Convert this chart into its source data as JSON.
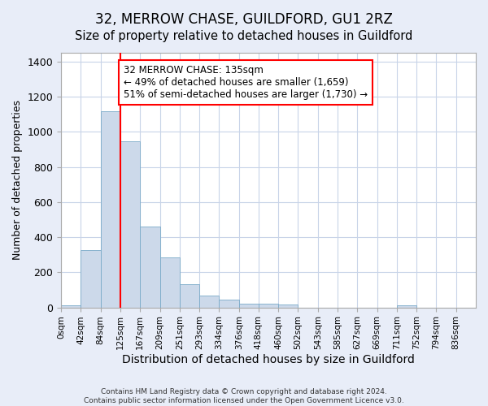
{
  "title": "32, MERROW CHASE, GUILDFORD, GU1 2RZ",
  "subtitle": "Size of property relative to detached houses in Guildford",
  "xlabel": "Distribution of detached houses by size in Guildford",
  "ylabel": "Number of detached properties",
  "footer_line1": "Contains HM Land Registry data © Crown copyright and database right 2024.",
  "footer_line2": "Contains public sector information licensed under the Open Government Licence v3.0.",
  "bin_labels": [
    "0sqm",
    "42sqm",
    "84sqm",
    "125sqm",
    "167sqm",
    "209sqm",
    "251sqm",
    "293sqm",
    "334sqm",
    "376sqm",
    "418sqm",
    "460sqm",
    "502sqm",
    "543sqm",
    "585sqm",
    "627sqm",
    "669sqm",
    "711sqm",
    "752sqm",
    "794sqm",
    "836sqm"
  ],
  "bar_values": [
    10,
    325,
    1115,
    945,
    462,
    285,
    130,
    68,
    44,
    22,
    22,
    15,
    0,
    0,
    0,
    0,
    0,
    12,
    0,
    0,
    0
  ],
  "bar_color": "#ccd9ea",
  "bar_edge_color": "#7aaac8",
  "grid_color": "#c8d4e8",
  "vline_x": 3,
  "vline_color": "red",
  "annotation_text": "32 MERROW CHASE: 135sqm\n← 49% of detached houses are smaller (1,659)\n51% of semi-detached houses are larger (1,730) →",
  "ylim": [
    0,
    1450
  ],
  "figure_bg": "#e8edf8",
  "axes_bg": "#ffffff",
  "title_fontsize": 12,
  "subtitle_fontsize": 10.5
}
